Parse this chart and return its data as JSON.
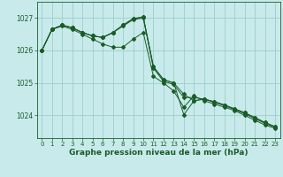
{
  "xlabel": "Graphe pression niveau de la mer (hPa)",
  "xlim": [
    -0.5,
    23.5
  ],
  "ylim": [
    1023.3,
    1027.5
  ],
  "yticks": [
    1024,
    1025,
    1026,
    1027
  ],
  "xticks": [
    0,
    1,
    2,
    3,
    4,
    5,
    6,
    7,
    8,
    9,
    10,
    11,
    12,
    13,
    14,
    15,
    16,
    17,
    18,
    19,
    20,
    21,
    22,
    23
  ],
  "background_color": "#c8eaea",
  "grid_color": "#9ecece",
  "line_color": "#1a5c28",
  "series": [
    [
      1026.0,
      1026.65,
      1026.75,
      1026.65,
      1026.5,
      1026.35,
      1026.2,
      1026.1,
      1026.1,
      1026.35,
      1026.55,
      1025.2,
      1025.0,
      1024.75,
      1024.25,
      1024.6,
      1024.45,
      1024.35,
      1024.25,
      1024.15,
      1024.0,
      1023.85,
      1023.7,
      1023.6
    ],
    [
      1026.0,
      1026.65,
      1026.78,
      1026.7,
      1026.55,
      1026.45,
      1026.4,
      1026.55,
      1026.75,
      1026.95,
      1027.0,
      1025.45,
      1025.05,
      1024.95,
      1024.55,
      1024.55,
      1024.5,
      1024.4,
      1024.3,
      1024.18,
      1024.05,
      1023.9,
      1023.75,
      1023.63
    ],
    [
      1026.0,
      1026.65,
      1026.78,
      1026.7,
      1026.55,
      1026.45,
      1026.4,
      1026.55,
      1026.78,
      1026.98,
      1027.03,
      1025.5,
      1025.1,
      1025.0,
      1024.02,
      1024.45,
      1024.5,
      1024.42,
      1024.32,
      1024.2,
      1024.08,
      1023.93,
      1023.78,
      1023.65
    ],
    [
      1026.0,
      1026.65,
      1026.78,
      1026.7,
      1026.55,
      1026.45,
      1026.4,
      1026.55,
      1026.78,
      1026.98,
      1027.03,
      1025.5,
      1025.1,
      1025.0,
      1024.65,
      1024.45,
      1024.5,
      1024.42,
      1024.32,
      1024.2,
      1024.08,
      1023.93,
      1023.78,
      1023.65
    ]
  ]
}
